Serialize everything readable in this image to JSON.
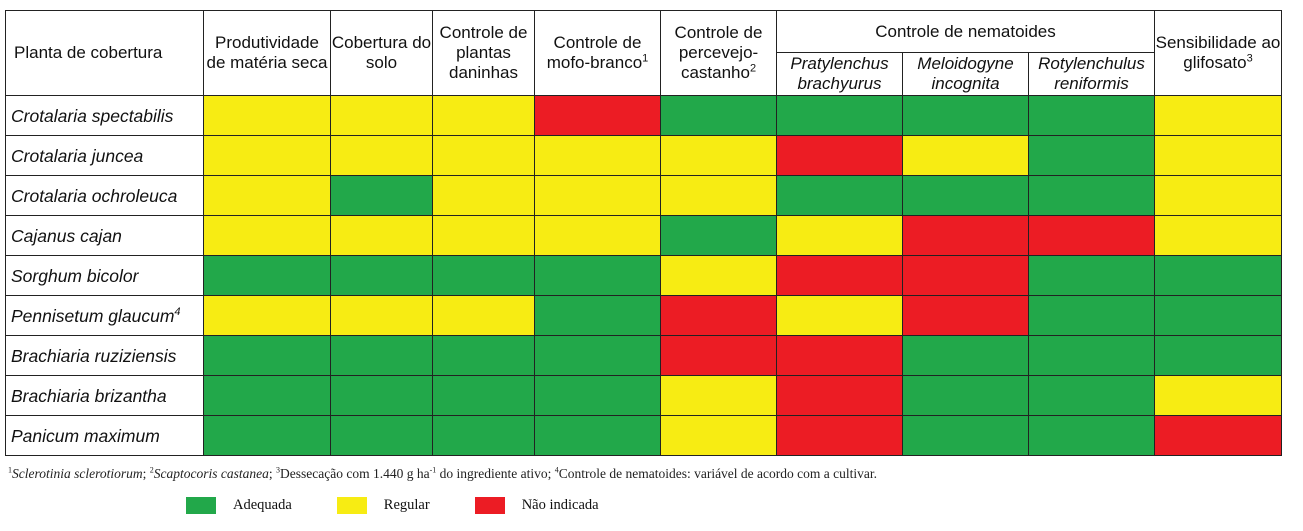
{
  "colors": {
    "Adequada": "#22a84a",
    "Regular": "#f7ec13",
    "Não indicada": "#ec1c24"
  },
  "header": {
    "plant": "Planta de cobertura",
    "prod": "Produtividade de matéria seca",
    "cob": "Cobertura do solo",
    "daninhas": "Controle de plantas daninhas",
    "mofo": "Controle de mofo-branco",
    "mofo_sup": "1",
    "perc": "Controle de percevejo-castanho",
    "perc_sup": "2",
    "nema": "Controle de nematoides",
    "prat": "Pratylenchus brachyurus",
    "melo": "Meloidogyne incognita",
    "roty": "Rotylenchulus reniformis",
    "glif": "Sensibilidade ao glifosato",
    "glif_sup": "3"
  },
  "rows": [
    {
      "plant": "Crotalaria spectabilis",
      "sup": "",
      "ratings": [
        "Regular",
        "Regular",
        "Regular",
        "Não indicada",
        "Adequada",
        "Adequada",
        "Adequada",
        "Adequada",
        "Regular"
      ]
    },
    {
      "plant": "Crotalaria juncea",
      "sup": "",
      "ratings": [
        "Regular",
        "Regular",
        "Regular",
        "Regular",
        "Regular",
        "Não indicada",
        "Regular",
        "Adequada",
        "Regular"
      ]
    },
    {
      "plant": "Crotalaria ochroleuca",
      "sup": "",
      "ratings": [
        "Regular",
        "Adequada",
        "Regular",
        "Regular",
        "Regular",
        "Adequada",
        "Adequada",
        "Adequada",
        "Regular"
      ]
    },
    {
      "plant": "Cajanus cajan",
      "sup": "",
      "ratings": [
        "Regular",
        "Regular",
        "Regular",
        "Regular",
        "Adequada",
        "Regular",
        "Não indicada",
        "Não indicada",
        "Regular"
      ]
    },
    {
      "plant": "Sorghum bicolor",
      "sup": "",
      "ratings": [
        "Adequada",
        "Adequada",
        "Adequada",
        "Adequada",
        "Regular",
        "Não indicada",
        "Não indicada",
        "Adequada",
        "Adequada"
      ]
    },
    {
      "plant": "Pennisetum glaucum",
      "sup": "4",
      "ratings": [
        "Regular",
        "Regular",
        "Regular",
        "Adequada",
        "Não indicada",
        "Regular",
        "Não indicada",
        "Adequada",
        "Adequada"
      ]
    },
    {
      "plant": "Brachiaria ruziziensis",
      "sup": "",
      "ratings": [
        "Adequada",
        "Adequada",
        "Adequada",
        "Adequada",
        "Não indicada",
        "Não indicada",
        "Adequada",
        "Adequada",
        "Adequada"
      ]
    },
    {
      "plant": "Brachiaria brizantha",
      "sup": "",
      "ratings": [
        "Adequada",
        "Adequada",
        "Adequada",
        "Adequada",
        "Regular",
        "Não indicada",
        "Adequada",
        "Adequada",
        "Regular"
      ]
    },
    {
      "plant": "Panicum maximum",
      "sup": "",
      "ratings": [
        "Adequada",
        "Adequada",
        "Adequada",
        "Adequada",
        "Regular",
        "Não indicada",
        "Adequada",
        "Adequada",
        "Não indicada"
      ]
    }
  ],
  "footnotes": {
    "s1": "1",
    "t1": "Sclerotinia sclerotiorum",
    "s2": "2",
    "t2": "Scaptocoris castanea",
    "s3": "3",
    "t3a": "Dessecação com 1.440 g ha",
    "t3sup": "-1",
    "t3b": " do ingrediente ativo; ",
    "s4": "4",
    "t4": "Controle de nematoides: variável de acordo com a cultivar."
  },
  "legend": [
    "Adequada",
    "Regular",
    "Não indicada"
  ]
}
